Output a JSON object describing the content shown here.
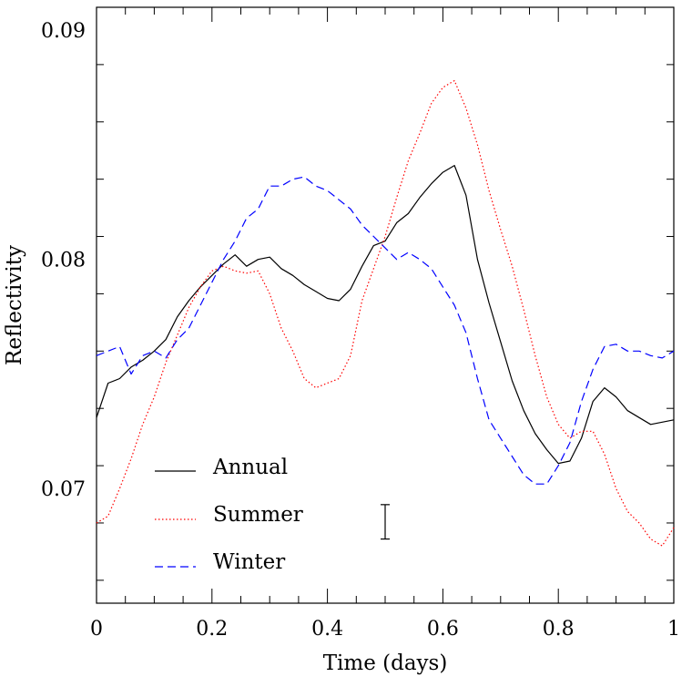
{
  "chart_data": {
    "type": "line",
    "title": "",
    "xlabel": "Time (days)",
    "ylabel": "Reflectivity",
    "xlim": [
      0,
      1
    ],
    "ylim": [
      0.065,
      0.091
    ],
    "grid": false,
    "legend_position": "bottom-left",
    "x_ticks": [
      {
        "value": 0,
        "label": "0"
      },
      {
        "value": 0.2,
        "label": "0.2"
      },
      {
        "value": 0.4,
        "label": "0.4"
      },
      {
        "value": 0.6,
        "label": "0.6"
      },
      {
        "value": 0.8,
        "label": "0.8"
      },
      {
        "value": 1,
        "label": "1"
      }
    ],
    "y_ticks": [
      {
        "value": 0.07,
        "label": "0.07"
      },
      {
        "value": 0.08,
        "label": "0.08"
      },
      {
        "value": 0.09,
        "label": "0.09"
      }
    ],
    "error_bar": {
      "x": 0.5,
      "low": 0.0678,
      "high": 0.0693
    },
    "series": [
      {
        "name": "Annual",
        "color": "#000000",
        "dash": "solid",
        "x": [
          0,
          0.02,
          0.04,
          0.06,
          0.08,
          0.1,
          0.12,
          0.14,
          0.16,
          0.18,
          0.2,
          0.22,
          0.24,
          0.26,
          0.28,
          0.3,
          0.32,
          0.34,
          0.36,
          0.38,
          0.4,
          0.42,
          0.44,
          0.46,
          0.48,
          0.5,
          0.52,
          0.54,
          0.56,
          0.58,
          0.6,
          0.62,
          0.64,
          0.66,
          0.68,
          0.7,
          0.72,
          0.74,
          0.76,
          0.78,
          0.8,
          0.82,
          0.84,
          0.86,
          0.88,
          0.9,
          0.92,
          0.94,
          0.96,
          0.98,
          1
        ],
        "y": [
          0.0731,
          0.0746,
          0.0748,
          0.0753,
          0.0756,
          0.076,
          0.0765,
          0.0775,
          0.0782,
          0.0788,
          0.0793,
          0.0798,
          0.0802,
          0.0797,
          0.08,
          0.0801,
          0.0796,
          0.0793,
          0.0789,
          0.0786,
          0.0783,
          0.0782,
          0.0787,
          0.0797,
          0.0806,
          0.0808,
          0.0816,
          0.082,
          0.0827,
          0.0833,
          0.0838,
          0.0841,
          0.0828,
          0.08,
          0.0781,
          0.0764,
          0.0747,
          0.0734,
          0.0724,
          0.0717,
          0.0711,
          0.0712,
          0.0722,
          0.0738,
          0.0744,
          0.074,
          0.0734,
          0.0731,
          0.0728,
          0.0729,
          0.073
        ]
      },
      {
        "name": "Summer",
        "color": "#ff0000",
        "dash": "dotted",
        "x": [
          0,
          0.02,
          0.04,
          0.06,
          0.08,
          0.1,
          0.12,
          0.14,
          0.16,
          0.18,
          0.2,
          0.22,
          0.24,
          0.26,
          0.28,
          0.3,
          0.32,
          0.34,
          0.36,
          0.38,
          0.4,
          0.42,
          0.44,
          0.46,
          0.48,
          0.5,
          0.52,
          0.54,
          0.56,
          0.58,
          0.6,
          0.62,
          0.64,
          0.66,
          0.68,
          0.7,
          0.72,
          0.74,
          0.76,
          0.78,
          0.8,
          0.82,
          0.84,
          0.86,
          0.88,
          0.9,
          0.92,
          0.94,
          0.96,
          0.98,
          1
        ],
        "y": [
          0.0685,
          0.0688,
          0.07,
          0.0713,
          0.0728,
          0.074,
          0.0755,
          0.0767,
          0.0779,
          0.0788,
          0.0795,
          0.0797,
          0.0795,
          0.0794,
          0.0795,
          0.0785,
          0.077,
          0.076,
          0.0748,
          0.0744,
          0.0746,
          0.0748,
          0.0758,
          0.0782,
          0.0796,
          0.081,
          0.0827,
          0.0843,
          0.0855,
          0.0868,
          0.0875,
          0.0878,
          0.0866,
          0.085,
          0.083,
          0.0813,
          0.0797,
          0.0778,
          0.0758,
          0.074,
          0.0728,
          0.0722,
          0.0725,
          0.0725,
          0.0715,
          0.07,
          0.069,
          0.0685,
          0.0678,
          0.0675,
          0.0683
        ]
      },
      {
        "name": "Winter",
        "color": "#0000ff",
        "dash": "dashed",
        "x": [
          0,
          0.02,
          0.04,
          0.06,
          0.08,
          0.1,
          0.12,
          0.14,
          0.16,
          0.18,
          0.2,
          0.22,
          0.24,
          0.26,
          0.28,
          0.3,
          0.32,
          0.34,
          0.36,
          0.38,
          0.4,
          0.42,
          0.44,
          0.46,
          0.48,
          0.5,
          0.52,
          0.54,
          0.56,
          0.58,
          0.6,
          0.62,
          0.64,
          0.66,
          0.68,
          0.7,
          0.72,
          0.74,
          0.76,
          0.78,
          0.8,
          0.82,
          0.84,
          0.86,
          0.88,
          0.9,
          0.92,
          0.94,
          0.96,
          0.98,
          1
        ],
        "y": [
          0.0758,
          0.076,
          0.0762,
          0.075,
          0.0758,
          0.076,
          0.0757,
          0.0765,
          0.077,
          0.078,
          0.079,
          0.08,
          0.0808,
          0.0818,
          0.0822,
          0.0832,
          0.0832,
          0.0835,
          0.0836,
          0.0832,
          0.083,
          0.0826,
          0.0822,
          0.0815,
          0.081,
          0.0805,
          0.08,
          0.0803,
          0.08,
          0.0796,
          0.0788,
          0.078,
          0.0768,
          0.0748,
          0.073,
          0.0722,
          0.0714,
          0.0706,
          0.0702,
          0.0702,
          0.071,
          0.072,
          0.0738,
          0.0752,
          0.0762,
          0.0763,
          0.076,
          0.076,
          0.0758,
          0.0757,
          0.076
        ]
      }
    ]
  }
}
